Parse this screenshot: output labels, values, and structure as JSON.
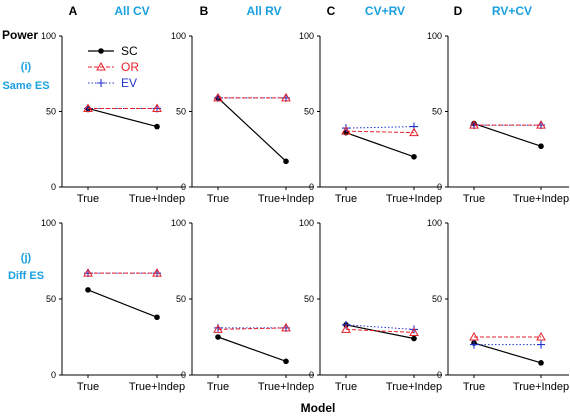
{
  "figure": {
    "y_axis_title": "Power",
    "x_axis_title": "Model",
    "row_labels": [
      {
        "letter": "(i)",
        "text": "Same ES"
      },
      {
        "letter": "(j)",
        "text": "Diff ES"
      }
    ],
    "column_headers": [
      {
        "letter": "A",
        "title": "All CV"
      },
      {
        "letter": "B",
        "title": "All RV"
      },
      {
        "letter": "C",
        "title": "CV+RV"
      },
      {
        "letter": "D",
        "title": "RV+CV"
      }
    ]
  },
  "colors": {
    "column_title": "#1aa0e0",
    "SC": "#000000",
    "OR": "#e8202a",
    "EV": "#2233cc",
    "overlap": "#c050c8",
    "axis": "#000000"
  },
  "chart_data": [
    {
      "type": "line",
      "panel": "A (i)",
      "categories": [
        "True",
        "True+Indep"
      ],
      "ylim": [
        0,
        100
      ],
      "yticks": [
        0,
        50,
        100
      ],
      "legend_position": "top-left",
      "series": [
        {
          "name": "SC",
          "values": [
            52,
            40
          ]
        },
        {
          "name": "OR",
          "values": [
            52,
            52
          ]
        },
        {
          "name": "EV",
          "values": [
            52,
            52
          ]
        }
      ]
    },
    {
      "type": "line",
      "panel": "B (i)",
      "categories": [
        "True",
        "True+Indep"
      ],
      "ylim": [
        0,
        100
      ],
      "yticks": [
        0,
        50,
        100
      ],
      "series": [
        {
          "name": "SC",
          "values": [
            59,
            17
          ]
        },
        {
          "name": "OR",
          "values": [
            59,
            59
          ]
        },
        {
          "name": "EV",
          "values": [
            59,
            59
          ]
        }
      ]
    },
    {
      "type": "line",
      "panel": "C (i)",
      "categories": [
        "True",
        "True+Indep"
      ],
      "ylim": [
        0,
        100
      ],
      "yticks": [
        0,
        50,
        100
      ],
      "series": [
        {
          "name": "SC",
          "values": [
            36,
            20
          ]
        },
        {
          "name": "OR",
          "values": [
            37,
            36
          ]
        },
        {
          "name": "EV",
          "values": [
            39,
            40
          ]
        }
      ]
    },
    {
      "type": "line",
      "panel": "D (i)",
      "categories": [
        "True",
        "True+Indep"
      ],
      "ylim": [
        0,
        100
      ],
      "yticks": [
        0,
        50,
        100
      ],
      "series": [
        {
          "name": "SC",
          "values": [
            42,
            27
          ]
        },
        {
          "name": "OR",
          "values": [
            41,
            41
          ]
        },
        {
          "name": "EV",
          "values": [
            41,
            41
          ]
        }
      ]
    },
    {
      "type": "line",
      "panel": "A (j)",
      "categories": [
        "True",
        "True+Indep"
      ],
      "ylim": [
        0,
        100
      ],
      "yticks": [
        0,
        50,
        100
      ],
      "series": [
        {
          "name": "SC",
          "values": [
            56,
            38
          ]
        },
        {
          "name": "OR",
          "values": [
            67,
            67
          ]
        },
        {
          "name": "EV",
          "values": [
            67,
            67
          ]
        }
      ]
    },
    {
      "type": "line",
      "panel": "B (j)",
      "categories": [
        "True",
        "True+Indep"
      ],
      "ylim": [
        0,
        100
      ],
      "yticks": [
        0,
        50,
        100
      ],
      "series": [
        {
          "name": "SC",
          "values": [
            25,
            9
          ]
        },
        {
          "name": "OR",
          "values": [
            30,
            31
          ]
        },
        {
          "name": "EV",
          "values": [
            31,
            31
          ]
        }
      ]
    },
    {
      "type": "line",
      "panel": "C (j)",
      "categories": [
        "True",
        "True+Indep"
      ],
      "ylim": [
        0,
        100
      ],
      "yticks": [
        0,
        50,
        100
      ],
      "series": [
        {
          "name": "SC",
          "values": [
            33,
            24
          ]
        },
        {
          "name": "OR",
          "values": [
            30,
            28
          ]
        },
        {
          "name": "EV",
          "values": [
            33,
            30
          ]
        }
      ]
    },
    {
      "type": "line",
      "panel": "D (j)",
      "categories": [
        "True",
        "True+Indep"
      ],
      "ylim": [
        0,
        100
      ],
      "yticks": [
        0,
        50,
        100
      ],
      "series": [
        {
          "name": "SC",
          "values": [
            21,
            8
          ]
        },
        {
          "name": "OR",
          "values": [
            25,
            25
          ]
        },
        {
          "name": "EV",
          "values": [
            20,
            20
          ]
        }
      ]
    }
  ]
}
